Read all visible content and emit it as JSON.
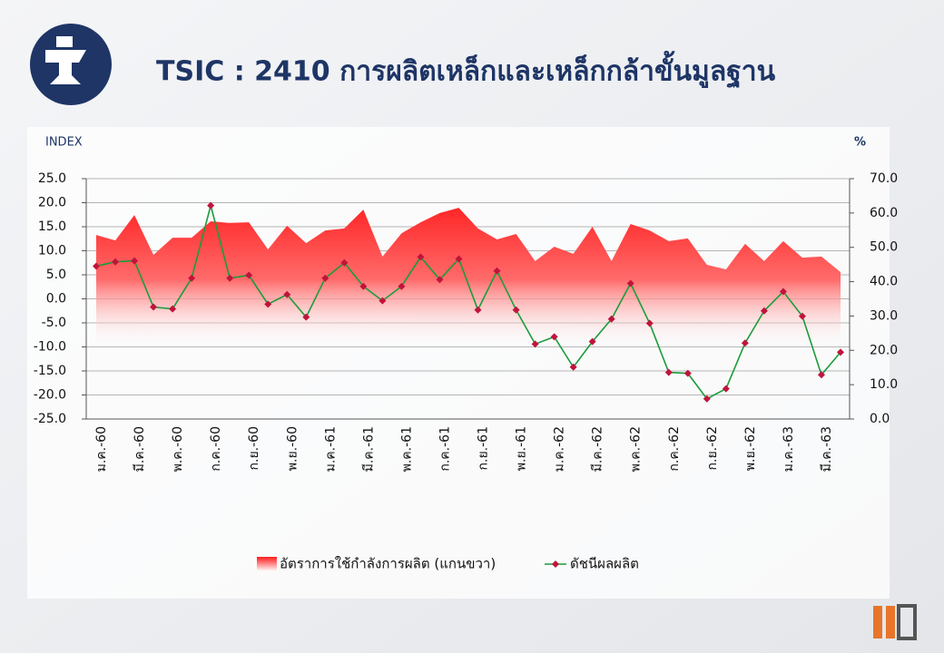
{
  "chart_data": {
    "type": "line",
    "title": "TSIC : 2410  การผลิตเหล็กและเหล็กกล้าขั้นมูลฐาน",
    "y_label": "INDEX",
    "y2_label": "%",
    "categories": [
      "ม.ค.-60",
      null,
      "มี.ค.-60",
      null,
      "พ.ค.-60",
      null,
      "ก.ค.-60",
      null,
      "ก.ย.-60",
      null,
      "พ.ย.-60",
      null,
      "ม.ค.-61",
      null,
      "มี.ค.-61",
      null,
      "พ.ค.-61",
      null,
      "ก.ค.-61",
      null,
      "ก.ย.-61",
      null,
      "พ.ย.-61",
      null,
      "ม.ค.-62",
      null,
      "มี.ค.-62",
      null,
      "พ.ค.-62",
      null,
      "ก.ค.-62",
      null,
      "ก.ย.-62",
      null,
      "พ.ย.-62",
      null,
      "ม.ค.-63",
      null,
      "มี.ค.-63",
      null
    ],
    "series": [
      {
        "name": "อัตราการใช้กำลังการผลิต (แกนขวา)",
        "type": "area",
        "axis": "y2",
        "color": "#ff1a1a",
        "values": [
          53.6,
          52.0,
          59.4,
          47.8,
          52.8,
          52.8,
          57.6,
          57.1,
          57.3,
          49.4,
          56.3,
          51.2,
          54.9,
          55.5,
          61.0,
          47.3,
          54.1,
          57.3,
          60.0,
          61.5,
          55.5,
          52.3,
          53.9,
          46.0,
          50.2,
          48.1,
          56.0,
          46.0,
          56.8,
          54.9,
          51.8,
          52.6,
          44.9,
          43.6,
          51.0,
          46.0,
          51.8,
          47.0,
          47.3,
          42.8
        ]
      },
      {
        "name": "ดัชนีผลผลิต",
        "type": "line",
        "color": "#1a9c3a",
        "marker_color": "#c0143c",
        "values": [
          6.8,
          7.7,
          7.9,
          -1.7,
          -2.1,
          4.3,
          19.4,
          4.3,
          4.9,
          -1.1,
          0.9,
          -3.8,
          4.3,
          7.5,
          2.6,
          -0.4,
          2.6,
          8.7,
          4.0,
          8.3,
          -2.3,
          5.8,
          -2.3,
          -9.4,
          -7.9,
          -14.2,
          -8.9,
          -4.2,
          3.2,
          -5.1,
          -15.3,
          -15.5,
          -20.8,
          -18.7,
          -9.2,
          -2.5,
          1.5,
          -3.6,
          -15.8,
          -11.1
        ]
      }
    ],
    "ylim": [
      -25,
      25
    ],
    "yticks": [
      {
        "value": -25,
        "label": "-25.0"
      },
      {
        "value": -20,
        "label": "-20.0"
      },
      {
        "value": -15,
        "label": "-15.0"
      },
      {
        "value": -10,
        "label": "-10.0"
      },
      {
        "value": -5,
        "label": "-5.0"
      },
      {
        "value": 0,
        "label": "0.0"
      },
      {
        "value": 5,
        "label": "5.0"
      },
      {
        "value": 10,
        "label": "10.0"
      },
      {
        "value": 15,
        "label": "15.0"
      },
      {
        "value": 20,
        "label": "20.0"
      },
      {
        "value": 25,
        "label": "25.0"
      }
    ],
    "y2lim": [
      0,
      70
    ],
    "y2ticks": [
      {
        "value": 0,
        "label": "0.0"
      },
      {
        "value": 10,
        "label": "10.0"
      },
      {
        "value": 20,
        "label": "20.0"
      },
      {
        "value": 30,
        "label": "30.0"
      },
      {
        "value": 40,
        "label": "40.0"
      },
      {
        "value": 50,
        "label": "50.0"
      },
      {
        "value": 60,
        "label": "60.0"
      },
      {
        "value": 70,
        "label": "70.0"
      }
    ],
    "grid": true,
    "legend": "bottom"
  }
}
